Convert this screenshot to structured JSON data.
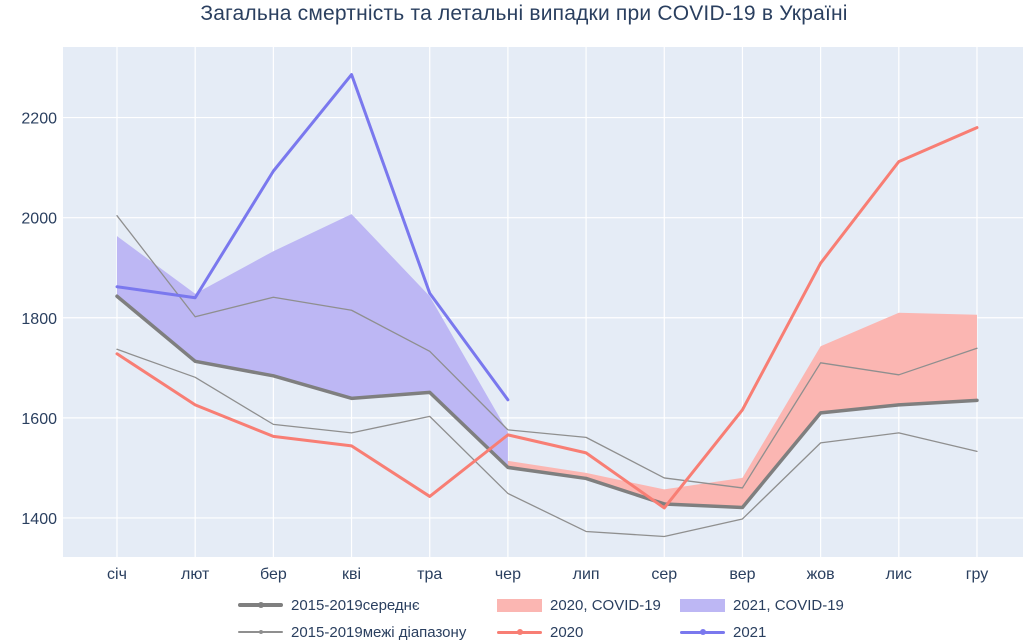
{
  "title": "Загальна смертність та летальні випадки при COVID-19 в Україні",
  "colors": {
    "text": "#2a3f5f",
    "plot_bg": "#e5ecf6",
    "grid": "#ffffff",
    "mean_line": "#7f7f7f",
    "range_line": "#8f8f8f",
    "line_2020": "#f87e74",
    "line_2021": "#7a78ee",
    "fill_2020": "#fbb6b2",
    "fill_2021": "#bdb7f4"
  },
  "legend": {
    "row1": [
      {
        "label": "2015-2019середнє"
      },
      {
        "label": "2020, COVID-19"
      },
      {
        "label": "2021, COVID-19"
      }
    ],
    "row2": [
      {
        "label": "2015-2019межі діапазону"
      },
      {
        "label": "2020"
      },
      {
        "label": "2021"
      }
    ]
  },
  "chart_data": {
    "type": "line",
    "title": "Загальна смертність та летальні випадки при COVID-19 в Україні",
    "xlabel": "",
    "ylabel": "",
    "grid": true,
    "legend_position": "bottom",
    "x_categories": [
      "січ",
      "лют",
      "бер",
      "кві",
      "тра",
      "чер",
      "лип",
      "сер",
      "вер",
      "жов",
      "лис",
      "гру"
    ],
    "y_ticks": [
      1400,
      1600,
      1800,
      2000,
      2200
    ],
    "y_range": [
      1322,
      2341
    ],
    "series": [
      {
        "id": "mean-2015-2019",
        "name": "2015-2019середнє",
        "role": "mean",
        "color_key": "mean_line",
        "width": 3.5,
        "x_start": 0,
        "values": [
          1843,
          1713,
          1684,
          1639,
          1651,
          1501,
          1479,
          1428,
          1421,
          1610,
          1626,
          1635
        ]
      },
      {
        "id": "range-upper",
        "name": "2015-2019межі діапазону (верхня межа)",
        "color_key": "range_line",
        "width": 1.3,
        "x_start": 0,
        "values": [
          2004,
          1802,
          1841,
          1815,
          1733,
          1576,
          1561,
          1480,
          1460,
          1710,
          1686,
          1739
        ]
      },
      {
        "id": "range-lower",
        "name": "2015-2019межі діапазону (нижня межа)",
        "color_key": "range_line",
        "width": 1.3,
        "x_start": 0,
        "values": [
          1737,
          1681,
          1587,
          1570,
          1603,
          1449,
          1373,
          1363,
          1398,
          1550,
          1570,
          1533
        ]
      },
      {
        "id": "year-2020",
        "name": "2020",
        "color_key": "line_2020",
        "width": 3,
        "x_start": 0,
        "values": [
          1728,
          1626,
          1563,
          1544,
          1443,
          1566,
          1530,
          1420,
          1616,
          1909,
          2112,
          2180
        ]
      },
      {
        "id": "year-2021",
        "name": "2021",
        "color_key": "line_2021",
        "width": 3,
        "x_start": 0,
        "values": [
          1862,
          1840,
          2093,
          2286,
          1849,
          1636
        ]
      }
    ],
    "fills": [
      {
        "id": "covid-2021",
        "name": "2021, COVID-19",
        "color_key": "fill_2021",
        "month_start": 0,
        "base": "mean",
        "top": [
          1963,
          1848,
          1933,
          2007,
          1843,
          1572
        ]
      },
      {
        "id": "covid-2020",
        "name": "2020, COVID-19",
        "color_key": "fill_2020",
        "month_start": 5,
        "base": "mean",
        "top": [
          1514,
          1490,
          1457,
          1480,
          1743,
          1810,
          1806
        ]
      }
    ]
  }
}
